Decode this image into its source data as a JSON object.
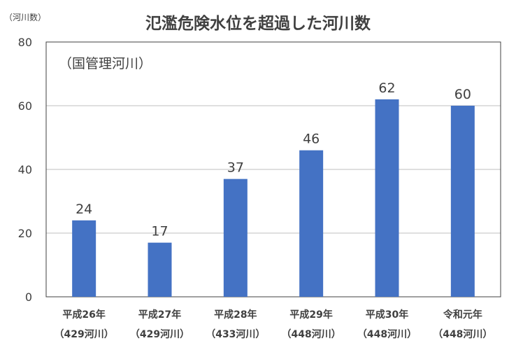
{
  "chart_data": {
    "type": "bar",
    "title": "氾濫危険水位を超過した河川数",
    "unit_label": "（河川数）",
    "note": "（国管理河川）",
    "categories": [
      {
        "label": "平成26年",
        "sub": "（429河川）"
      },
      {
        "label": "平成27年",
        "sub": "（429河川）"
      },
      {
        "label": "平成28年",
        "sub": "（433河川）"
      },
      {
        "label": "平成29年",
        "sub": "（448河川）"
      },
      {
        "label": "平成30年",
        "sub": "（448河川）"
      },
      {
        "label": "令和元年",
        "sub": "（448河川）"
      }
    ],
    "values": [
      24,
      17,
      37,
      46,
      62,
      60
    ],
    "ylim": [
      0,
      80
    ],
    "yticks": [
      0,
      20,
      40,
      60,
      80
    ],
    "grid": true,
    "bar_color": "#4472C4"
  }
}
